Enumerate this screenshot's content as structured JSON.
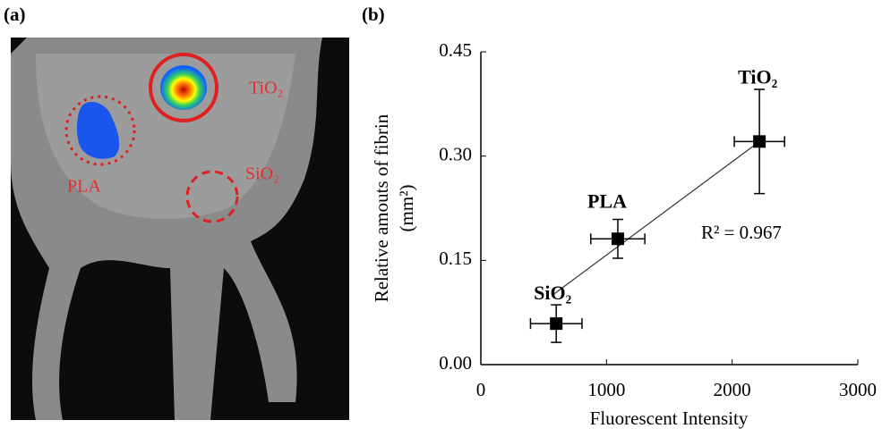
{
  "panel_a": {
    "label": "(a)",
    "labels": [
      "TiO₂",
      "PLA",
      "SiO₂"
    ]
  },
  "chart_data": {
    "type": "scatter",
    "panel_label": "(b)",
    "x_label": "Fluorescent Intensity",
    "y_label": [
      "Relative amouts of fibrin",
      "(mm²)"
    ],
    "categories": [
      "SiO₂",
      "PLA",
      "TiO₂"
    ],
    "x": [
      600,
      1090,
      2217
    ],
    "values": [
      0.059,
      0.181,
      0.321
    ],
    "x_errors": [
      205,
      215,
      200
    ],
    "y_errors": [
      0.027,
      0.028,
      0.075
    ],
    "color": "#000000",
    "fit_line": {
      "x": [
        570,
        2217
      ],
      "y": [
        0.1,
        0.321
      ]
    },
    "annotation": "R² = 0.967",
    "xlim": [
      0,
      3000
    ],
    "xticks": [
      0,
      1000,
      2000,
      3000
    ],
    "ylim": [
      0,
      0.45
    ],
    "yticks": [
      {
        "value": 0,
        "label": "0.00"
      },
      {
        "value": 0.15,
        "label": "0.15"
      },
      {
        "value": 0.3,
        "label": "0.30"
      },
      {
        "value": 0.45,
        "label": "0.45"
      }
    ],
    "grid": false
  }
}
